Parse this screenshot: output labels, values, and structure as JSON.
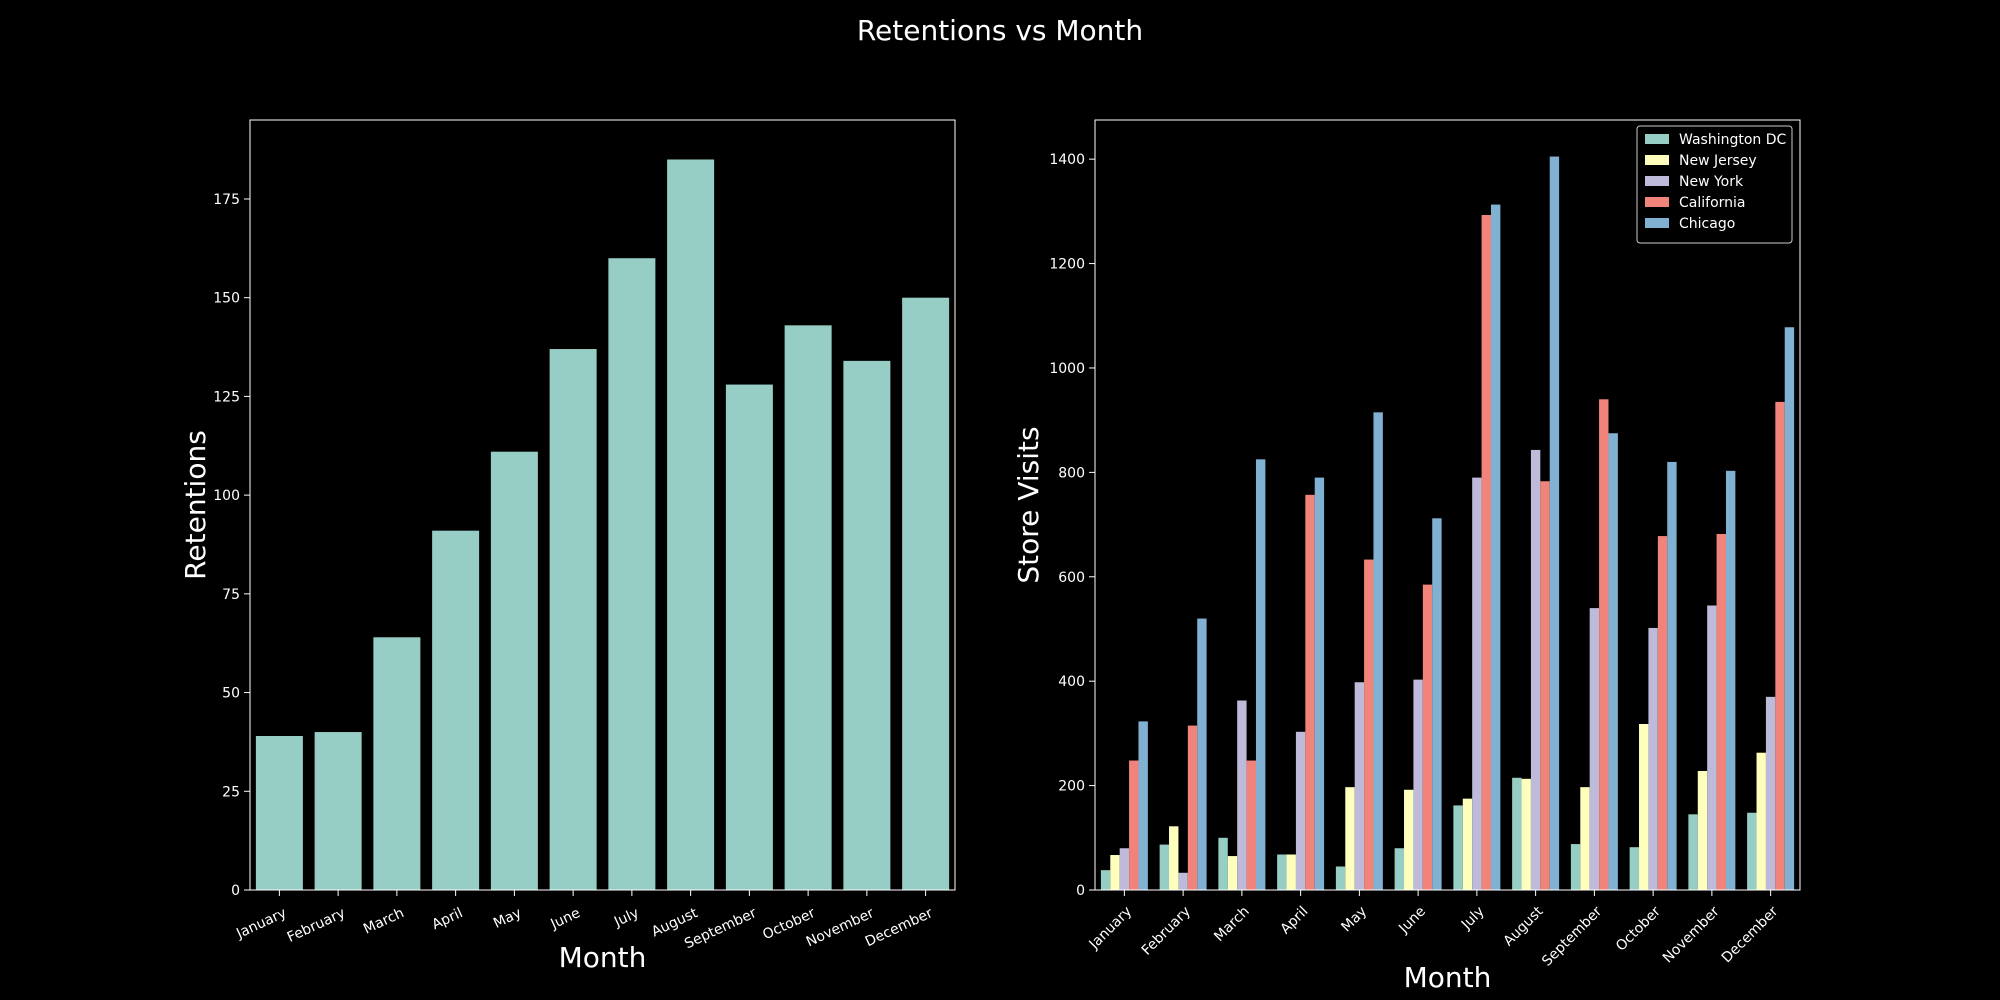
{
  "figure": {
    "title": "Retentions vs Month"
  },
  "chart_data": [
    {
      "type": "bar",
      "xlabel": "Month",
      "ylabel": "Retentions",
      "ylim": [
        0,
        195
      ],
      "yticks": [
        0,
        25,
        50,
        75,
        100,
        125,
        150,
        175
      ],
      "categories": [
        "January",
        "February",
        "March",
        "April",
        "May",
        "June",
        "July",
        "August",
        "September",
        "October",
        "November",
        "December"
      ],
      "values": [
        39,
        40,
        64,
        91,
        111,
        137,
        160,
        185,
        128,
        143,
        134,
        150
      ],
      "color": "#96CDC4",
      "grid": false
    },
    {
      "type": "bar",
      "xlabel": "Month",
      "ylabel": "Store Visits",
      "ylim": [
        0,
        1475
      ],
      "yticks": [
        0,
        200,
        400,
        600,
        800,
        1000,
        1200,
        1400
      ],
      "categories": [
        "January",
        "February",
        "March",
        "April",
        "May",
        "June",
        "July",
        "August",
        "September",
        "October",
        "November",
        "December"
      ],
      "legend_position": "top-right",
      "grid": false,
      "series": [
        {
          "name": "Washington DC",
          "color": "#96CDC4",
          "values": [
            38,
            87,
            100,
            68,
            45,
            80,
            162,
            215,
            88,
            82,
            145,
            148
          ]
        },
        {
          "name": "New Jersey",
          "color": "#FFFFBD",
          "values": [
            67,
            122,
            65,
            68,
            197,
            192,
            175,
            213,
            197,
            318,
            228,
            263
          ]
        },
        {
          "name": "New York",
          "color": "#BEBADA",
          "values": [
            80,
            33,
            363,
            303,
            398,
            403,
            790,
            843,
            540,
            502,
            545,
            370
          ]
        },
        {
          "name": "California",
          "color": "#F1847A",
          "values": [
            248,
            315,
            248,
            757,
            633,
            585,
            1293,
            783,
            940,
            678,
            682,
            935
          ]
        },
        {
          "name": "Chicago",
          "color": "#80B1D3",
          "values": [
            323,
            520,
            825,
            790,
            915,
            712,
            1313,
            1405,
            875,
            820,
            803,
            1078
          ]
        }
      ]
    }
  ]
}
